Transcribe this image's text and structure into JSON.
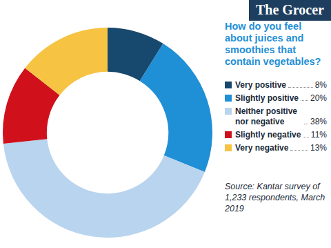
{
  "chart_data": {
    "type": "doughnut",
    "title": "How do you feel about juices and smoothies that contain vegetables?",
    "categories": [
      "Very positive",
      "Slightly positive",
      "Neither positive nor negative",
      "Slightly negative",
      "Very negative"
    ],
    "values": [
      8,
      20,
      38,
      11,
      13
    ],
    "value_labels": [
      "8%",
      "20%",
      "38%",
      "11%",
      "13%"
    ],
    "colors": [
      "#17486e",
      "#1f8fd6",
      "#b9d4ee",
      "#d0111c",
      "#f6c343"
    ],
    "legend": "right",
    "annotations": [
      "The Grocer",
      "Source:  Kantar survey of 1,233 respondents, March 2019"
    ]
  }
}
